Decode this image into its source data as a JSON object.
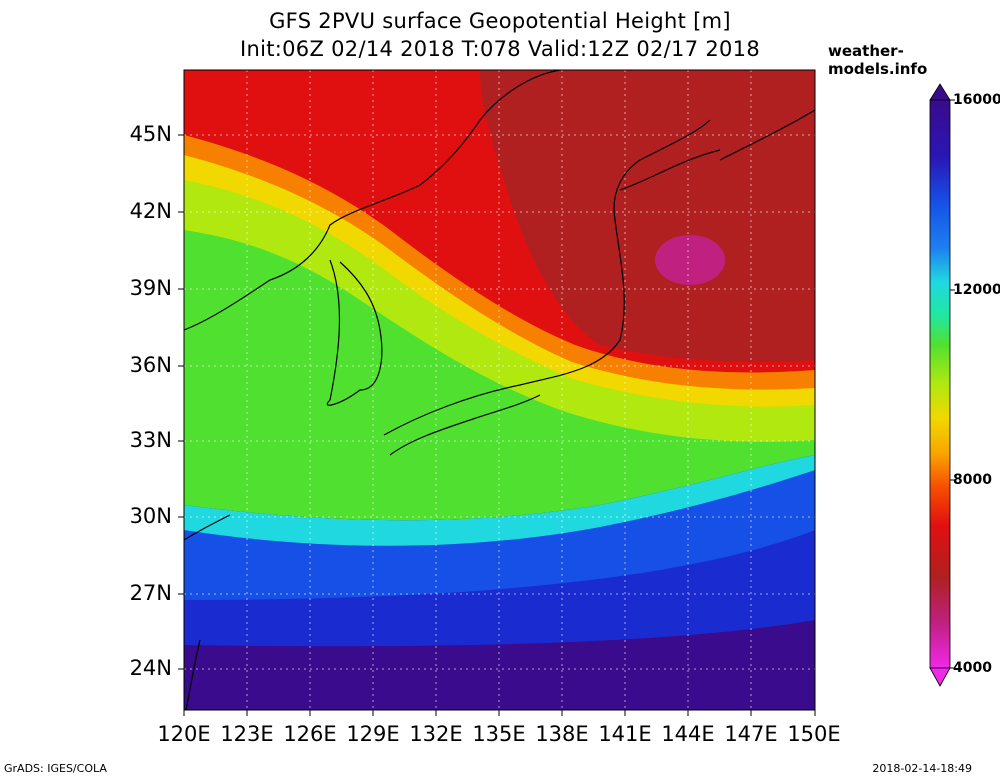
{
  "title": {
    "line1": "GFS 2PVU surface Geopotential Height [m]",
    "line2": "Init:06Z 02/14 2018 T:078 Valid:12Z 02/17 2018"
  },
  "site": "weather-models.info",
  "footer": {
    "left": "GrADS: IGES/COLA",
    "right": "2018-02-14-18:49"
  },
  "axes": {
    "lat_labels": [
      "45N",
      "42N",
      "39N",
      "36N",
      "33N",
      "30N",
      "27N",
      "24N"
    ],
    "lon_labels": [
      "120E",
      "123E",
      "126E",
      "129E",
      "132E",
      "135E",
      "138E",
      "141E",
      "144E",
      "147E",
      "150E"
    ]
  },
  "colorbar": {
    "labels": [
      "16000",
      "12000",
      "8000",
      "4000"
    ],
    "colors": [
      "#3a0b8c",
      "#2a16b4",
      "#1a2cd0",
      "#1650e6",
      "#1e7ef0",
      "#20aef0",
      "#20d8e0",
      "#20e8a0",
      "#30e060",
      "#50e030",
      "#80e020",
      "#b0e810",
      "#d8f000",
      "#f0d800",
      "#f8a800",
      "#f88000",
      "#f85000",
      "#f02000",
      "#e01010",
      "#c81818",
      "#b02020",
      "#b02050",
      "#c02080",
      "#e020c0",
      "#f028e8"
    ],
    "range": [
      4000,
      16000
    ]
  },
  "map_data": {
    "region": "East Asia / Japan",
    "field": "2PVU surface geopotential height",
    "lon_range": [
      120,
      150
    ],
    "lat_range": [
      22.5,
      47.5
    ]
  }
}
